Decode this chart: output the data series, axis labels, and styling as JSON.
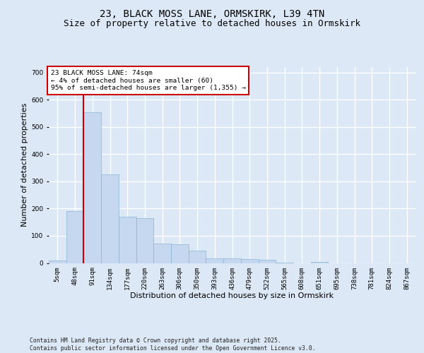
{
  "title_line1": "23, BLACK MOSS LANE, ORMSKIRK, L39 4TN",
  "title_line2": "Size of property relative to detached houses in Ormskirk",
  "xlabel": "Distribution of detached houses by size in Ormskirk",
  "ylabel": "Number of detached properties",
  "bar_color": "#c5d8ef",
  "bar_edge_color": "#8ab4d4",
  "background_color": "#dce8f5",
  "grid_color": "#ffffff",
  "categories": [
    "5sqm",
    "48sqm",
    "91sqm",
    "134sqm",
    "177sqm",
    "220sqm",
    "263sqm",
    "306sqm",
    "350sqm",
    "393sqm",
    "436sqm",
    "479sqm",
    "522sqm",
    "565sqm",
    "608sqm",
    "651sqm",
    "695sqm",
    "738sqm",
    "781sqm",
    "824sqm",
    "867sqm"
  ],
  "values": [
    10,
    190,
    555,
    325,
    170,
    165,
    72,
    70,
    45,
    18,
    18,
    15,
    12,
    2,
    0,
    5,
    0,
    0,
    0,
    0,
    0
  ],
  "vline_position": 1.5,
  "vline_color": "#cc0000",
  "annotation_text": "23 BLACK MOSS LANE: 74sqm\n← 4% of detached houses are smaller (60)\n95% of semi-detached houses are larger (1,355) →",
  "annotation_box_facecolor": "#ffffff",
  "annotation_box_edgecolor": "#cc0000",
  "ylim": [
    0,
    720
  ],
  "yticks": [
    0,
    100,
    200,
    300,
    400,
    500,
    600,
    700
  ],
  "footer_text": "Contains HM Land Registry data © Crown copyright and database right 2025.\nContains public sector information licensed under the Open Government Licence v3.0.",
  "title_fontsize": 10,
  "subtitle_fontsize": 9,
  "axis_label_fontsize": 8,
  "tick_fontsize": 6.5,
  "annotation_fontsize": 6.8,
  "footer_fontsize": 5.8
}
